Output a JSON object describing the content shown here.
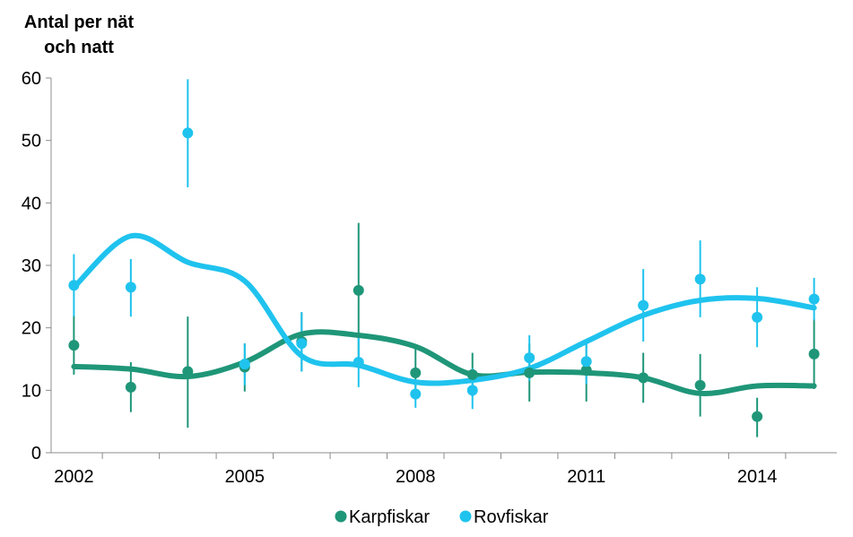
{
  "chart_data": {
    "type": "scatter",
    "ylabel_lines": [
      "Antal per nät",
      "och natt"
    ],
    "x_ticks": [
      "2002",
      "2005",
      "2008",
      "2011",
      "2014"
    ],
    "y_ticks": [
      "0",
      "10",
      "20",
      "30",
      "40",
      "50",
      "60"
    ],
    "ylim": [
      0,
      60
    ],
    "xlim": [
      2001.6,
      2015.4
    ],
    "grid": false,
    "legend_position": "bottom",
    "series": [
      {
        "name": "Karpfiskar",
        "color": "#1f9678",
        "points": [
          {
            "x": 2002,
            "y": 17.2,
            "lo": 12.5,
            "hi": 22.0
          },
          {
            "x": 2003,
            "y": 10.5,
            "lo": 6.5,
            "hi": 14.5
          },
          {
            "x": 2004,
            "y": 13.0,
            "lo": 4.0,
            "hi": 21.8
          },
          {
            "x": 2005,
            "y": 13.7,
            "lo": 9.8,
            "hi": 17.5
          },
          {
            "x": 2006,
            "y": 17.8,
            "lo": 13.0,
            "hi": 22.5
          },
          {
            "x": 2007,
            "y": 26.0,
            "lo": 15.0,
            "hi": 36.8
          },
          {
            "x": 2008,
            "y": 12.8,
            "lo": 8.5,
            "hi": 17.0
          },
          {
            "x": 2009,
            "y": 12.5,
            "lo": 9.0,
            "hi": 16.0
          },
          {
            "x": 2010,
            "y": 12.8,
            "lo": 8.2,
            "hi": 17.5
          },
          {
            "x": 2011,
            "y": 13.2,
            "lo": 8.2,
            "hi": 18.0
          },
          {
            "x": 2012,
            "y": 12.0,
            "lo": 8.0,
            "hi": 16.0
          },
          {
            "x": 2013,
            "y": 10.8,
            "lo": 5.8,
            "hi": 15.8
          },
          {
            "x": 2014,
            "y": 5.8,
            "lo": 2.5,
            "hi": 8.8
          },
          {
            "x": 2015,
            "y": 15.8,
            "lo": 10.2,
            "hi": 21.5
          }
        ],
        "trend": [
          {
            "x": 2002,
            "y": 13.8
          },
          {
            "x": 2003,
            "y": 13.4
          },
          {
            "x": 2004,
            "y": 12.2
          },
          {
            "x": 2005,
            "y": 14.5
          },
          {
            "x": 2006,
            "y": 19.0
          },
          {
            "x": 2007,
            "y": 18.8
          },
          {
            "x": 2008,
            "y": 17.0
          },
          {
            "x": 2009,
            "y": 12.5
          },
          {
            "x": 2010,
            "y": 12.9
          },
          {
            "x": 2011,
            "y": 12.8
          },
          {
            "x": 2012,
            "y": 12.0
          },
          {
            "x": 2013,
            "y": 9.5
          },
          {
            "x": 2014,
            "y": 10.7
          },
          {
            "x": 2015,
            "y": 10.7
          }
        ]
      },
      {
        "name": "Rovfiskar",
        "color": "#1fc3ee",
        "points": [
          {
            "x": 2002,
            "y": 26.8,
            "lo": 21.8,
            "hi": 31.8
          },
          {
            "x": 2003,
            "y": 26.5,
            "lo": 21.8,
            "hi": 31.0
          },
          {
            "x": 2004,
            "y": 51.2,
            "lo": 42.5,
            "hi": 59.8
          },
          {
            "x": 2005,
            "y": 14.2,
            "lo": 10.8,
            "hi": 17.5
          },
          {
            "x": 2006,
            "y": 17.5,
            "lo": 13.0,
            "hi": 22.5
          },
          {
            "x": 2007,
            "y": 14.5,
            "lo": 10.5,
            "hi": 18.5
          },
          {
            "x": 2008,
            "y": 9.4,
            "lo": 7.2,
            "hi": 11.8
          },
          {
            "x": 2009,
            "y": 10.0,
            "lo": 7.0,
            "hi": 13.5
          },
          {
            "x": 2010,
            "y": 15.2,
            "lo": 11.5,
            "hi": 18.8
          },
          {
            "x": 2011,
            "y": 14.6,
            "lo": 11.0,
            "hi": 18.2
          },
          {
            "x": 2012,
            "y": 23.6,
            "lo": 17.8,
            "hi": 29.4
          },
          {
            "x": 2013,
            "y": 27.8,
            "lo": 21.7,
            "hi": 34.0
          },
          {
            "x": 2014,
            "y": 21.7,
            "lo": 16.9,
            "hi": 26.5
          },
          {
            "x": 2015,
            "y": 24.6,
            "lo": 21.2,
            "hi": 28.0
          }
        ],
        "trend": [
          {
            "x": 2002,
            "y": 26.5
          },
          {
            "x": 2003,
            "y": 34.7
          },
          {
            "x": 2004,
            "y": 30.5
          },
          {
            "x": 2005,
            "y": 27.5
          },
          {
            "x": 2006,
            "y": 15.5
          },
          {
            "x": 2007,
            "y": 14.0
          },
          {
            "x": 2008,
            "y": 11.3
          },
          {
            "x": 2009,
            "y": 11.6
          },
          {
            "x": 2010,
            "y": 13.5
          },
          {
            "x": 2011,
            "y": 17.8
          },
          {
            "x": 2012,
            "y": 22.0
          },
          {
            "x": 2013,
            "y": 24.4
          },
          {
            "x": 2014,
            "y": 24.7
          },
          {
            "x": 2015,
            "y": 23.2
          }
        ]
      }
    ]
  }
}
